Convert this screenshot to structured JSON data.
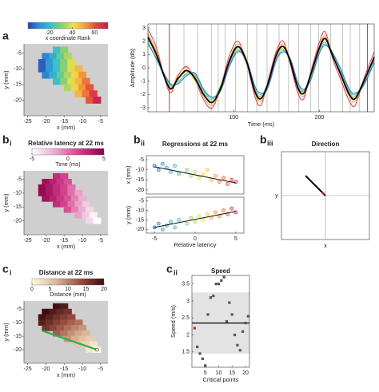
{
  "electrodes": {
    "x": [
      -17,
      -15,
      -20,
      -18,
      -16,
      -14,
      -21,
      -19,
      -17,
      -15,
      -13,
      -21,
      -19,
      -17,
      -15,
      -13,
      -11,
      -20,
      -18,
      -16,
      -14,
      -12,
      -10,
      -17,
      -15,
      -13,
      -11,
      -9,
      -14,
      -12,
      -10,
      -8,
      -11,
      -9,
      -7,
      -8,
      -6
    ],
    "y": [
      -4,
      -4,
      -6,
      -6,
      -6,
      -6,
      -8,
      -8,
      -8,
      -8,
      -8,
      -10,
      -10,
      -10,
      -10,
      -10,
      -10,
      -12,
      -12,
      -12,
      -12,
      -12,
      -12,
      -14,
      -14,
      -14,
      -14,
      -14,
      -16,
      -16,
      -16,
      -16,
      -18,
      -18,
      -18,
      -20,
      -20
    ]
  },
  "chart_data": [
    {
      "type": "map",
      "panel": "a",
      "x_label": "x (mm)",
      "y_label": "y (mm)",
      "xlim": [
        -26,
        -3
      ],
      "ylim": [
        -25,
        -2
      ],
      "xticks": [
        -25,
        -20,
        -15,
        -10,
        -5
      ],
      "yticks": [
        -20,
        -15,
        -10,
        -5
      ],
      "colorbar": {
        "label": "x coordinate Rank",
        "clim": [
          0,
          72
        ],
        "ticks": [
          20,
          40,
          60
        ],
        "colormap": [
          "#2c3fa8",
          "#2f8fd6",
          "#36c2c9",
          "#8fd16a",
          "#f3e04a",
          "#f59a3a",
          "#e0463a",
          "#c2185b"
        ]
      },
      "values": [
        21,
        30,
        9,
        17,
        26,
        34,
        4,
        13,
        21,
        30,
        39,
        4,
        13,
        21,
        30,
        39,
        47,
        9,
        17,
        26,
        34,
        43,
        52,
        21,
        30,
        39,
        47,
        56,
        34,
        43,
        52,
        60,
        47,
        56,
        64,
        60,
        69
      ]
    },
    {
      "type": "line",
      "x_label": "Time (ms)",
      "y_label": "Amplitude (db)",
      "xlim": [
        0,
        264
      ],
      "ylim": [
        -3.3,
        3.3
      ],
      "xticks": [
        100,
        200
      ],
      "yticks": [
        -3,
        -2,
        -1,
        0,
        1,
        2,
        3
      ],
      "critical_points": [
        10,
        25,
        42,
        58,
        74,
        82,
        90,
        102,
        116,
        127,
        139,
        153,
        164,
        176,
        190,
        199,
        213,
        227,
        236,
        247,
        256
      ],
      "critical_line_color": "#b5b5b5",
      "highlight": [
        25,
        256
      ],
      "highlight_color": "#d62728",
      "x": [
        0,
        10,
        25,
        35,
        45,
        55,
        65,
        75,
        85,
        95,
        105,
        115,
        125,
        132,
        140,
        150,
        158,
        166,
        175,
        182,
        190,
        200,
        207,
        215,
        225,
        235,
        242,
        252,
        264
      ],
      "series": [
        {
          "color": "#d7263d",
          "values": [
            2.9,
            1.5,
            -1.8,
            -0.6,
            0.1,
            -0.9,
            -2.4,
            -3,
            -1.4,
            0.9,
            2,
            0.4,
            -2.2,
            -2.8,
            -1,
            1.3,
            2,
            0.3,
            -1.9,
            -2.3,
            -0.3,
            1.9,
            2.7,
            0.8,
            -0.9,
            -2.5,
            -2.8,
            -0.8,
            1.2
          ]
        },
        {
          "color": "#f39c34",
          "values": [
            2.6,
            1.2,
            -1.6,
            -0.5,
            0,
            -0.7,
            -2.2,
            -2.8,
            -1.6,
            0.6,
            1.8,
            0.6,
            -1.9,
            -2.5,
            -1.3,
            1.1,
            1.8,
            0.6,
            -1.6,
            -2.1,
            -0.6,
            1.6,
            2.4,
            1.1,
            -0.6,
            -2.2,
            -2.5,
            -1.1,
            0.9
          ]
        },
        {
          "color": "#e6d94a",
          "values": [
            2.2,
            0.8,
            -1.4,
            -0.9,
            -0.3,
            -1,
            -2,
            -2.5,
            -1.7,
            0.3,
            1.5,
            0.7,
            -1.6,
            -2.2,
            -1.4,
            0.8,
            1.5,
            0.7,
            -1.3,
            -1.8,
            -0.7,
            1.3,
            2.1,
            1.2,
            -0.3,
            -1.9,
            -2.2,
            -1.2,
            0.7
          ]
        },
        {
          "color": "#6cc46a",
          "values": [
            2.5,
            0.9,
            -1.2,
            -1,
            -0.5,
            -0.6,
            -1.8,
            -2.4,
            -1.3,
            0.4,
            1.4,
            0.3,
            -1.7,
            -2.1,
            -1.1,
            0.9,
            1.4,
            0.4,
            -1.4,
            -1.7,
            -0.4,
            1.4,
            1.9,
            0.9,
            -0.4,
            -1.8,
            -2.1,
            -0.9,
            0.6
          ]
        },
        {
          "color": "#3fc1d0",
          "values": [
            2,
            0.6,
            -1.3,
            -1.1,
            -0.4,
            -0.5,
            -1.7,
            -2.3,
            -1.6,
            0.2,
            1.3,
            0.5,
            -1.5,
            -2,
            -1.3,
            0.7,
            1.3,
            0.6,
            -1.2,
            -1.7,
            -0.8,
            1.2,
            1.8,
            1.1,
            -0.2,
            -1.7,
            -2,
            -1.2,
            0.5
          ]
        },
        {
          "color": "#2c5fb0",
          "values": [
            1.8,
            0.7,
            -1.1,
            -1.2,
            -0.6,
            -0.4,
            -1.6,
            -2.2,
            -1.7,
            0.1,
            1.2,
            0.6,
            -1.4,
            -1.9,
            -1.5,
            0.6,
            1.2,
            0.7,
            -1.1,
            -1.6,
            -0.9,
            1.1,
            1.7,
            1.2,
            -0.1,
            -1.6,
            -1.9,
            -1.3,
            0.4
          ]
        },
        {
          "color": "#000000",
          "values": [
            2.3,
            1,
            -1.5,
            -0.8,
            -0.2,
            -0.8,
            -2,
            -2.6,
            -1.5,
            0.5,
            1.6,
            0.5,
            -1.8,
            -2.3,
            -1.2,
            1,
            1.6,
            0.5,
            -1.5,
            -1.9,
            -0.5,
            1.5,
            2.2,
            1,
            -0.5,
            -2,
            -2.3,
            -1,
            0.8
          ]
        }
      ]
    },
    {
      "type": "map",
      "panel": "b",
      "panel_sub": "i",
      "title": "Relative latency at 22 ms",
      "x_label": "x (mm)",
      "y_label": "y (mm)",
      "xlim": [
        -26,
        -3
      ],
      "ylim": [
        -25,
        -2
      ],
      "xticks": [
        -25,
        -20,
        -15,
        -10,
        -5
      ],
      "yticks": [
        -20,
        -15,
        -10,
        -5
      ],
      "colorbar": {
        "label": "Time (ms)",
        "clim": [
          -5,
          5
        ],
        "ticks": [
          -5,
          0,
          5
        ],
        "colormap": [
          "#ffffff",
          "#eaa6cb",
          "#d23c8a",
          "#8a0046"
        ]
      },
      "values": [
        2.5,
        1.5,
        4,
        3,
        2,
        1,
        4.5,
        3.5,
        2.5,
        1.5,
        0,
        4.5,
        3.5,
        2.5,
        1.5,
        0,
        -1.5,
        4,
        3,
        2,
        1,
        -0.5,
        -2,
        2.5,
        1.5,
        0,
        -1.5,
        -3,
        1,
        -0.5,
        -2,
        -3.5,
        -1.5,
        -3,
        -4.5,
        -3.5,
        -5
      ]
    },
    {
      "type": "regression",
      "panel": "b",
      "panel_sub": "ii",
      "title": "Regressions at 22 ms",
      "x_label": "Relative latency",
      "xlim": [
        -6,
        6
      ],
      "xticks": [
        -5,
        0,
        5
      ],
      "subplots": [
        {
          "y_label": "x (mm)",
          "ylim": [
            -22,
            -3
          ],
          "yticks": [
            -20,
            -15,
            -10,
            -5
          ],
          "x": [
            -5,
            -4.5,
            -4,
            -3.5,
            -3,
            -2.5,
            -2,
            -1,
            -0.5,
            0,
            0.5,
            1,
            1.5,
            2,
            2.5,
            3,
            3.5,
            4,
            4.5,
            5
          ],
          "values": [
            -8,
            -10,
            -7,
            -9,
            -11,
            -8,
            -12,
            -10,
            -13,
            -11,
            -14,
            -12,
            -10,
            -15,
            -13,
            -16,
            -14,
            -17,
            -15,
            -16
          ],
          "fit_x": [
            -5,
            5
          ],
          "fit_y": [
            -8.5,
            -16.5
          ]
        },
        {
          "y_label": "y (mm)",
          "ylim": [
            -22,
            -3
          ],
          "yticks": [
            -20,
            -15,
            -10,
            -5
          ],
          "x": [
            -5,
            -4.5,
            -4,
            -3.5,
            -3,
            -2.5,
            -2,
            -1,
            -0.5,
            0,
            0.5,
            1,
            1.5,
            2,
            2.5,
            3,
            3.5,
            4,
            4.5,
            5
          ],
          "values": [
            -19,
            -17,
            -20,
            -18,
            -16,
            -19,
            -15,
            -17,
            -14,
            -16,
            -13,
            -15,
            -12,
            -14,
            -11,
            -13,
            -10,
            -12,
            -9,
            -11
          ],
          "fit_x": [
            -5,
            5
          ],
          "fit_y": [
            -19,
            -10.5
          ]
        }
      ]
    },
    {
      "type": "vector",
      "panel": "b",
      "panel_sub": "iii",
      "title": "Direction",
      "x_label": "x",
      "y_label": "y",
      "xlim": [
        -1.5,
        1.5
      ],
      "ylim": [
        -1.5,
        1.5
      ],
      "vector": {
        "x": -0.68,
        "y": 0.68
      }
    },
    {
      "type": "map",
      "panel": "c",
      "panel_sub": "i",
      "title": "Distance at 22 ms",
      "x_label": "x (mm)",
      "y_label": "y (mm)",
      "xlim": [
        -26,
        -3
      ],
      "ylim": [
        -25,
        -2
      ],
      "xticks": [
        -25,
        -20,
        -15,
        -10,
        -5
      ],
      "yticks": [
        -20,
        -15,
        -10,
        -5
      ],
      "colorbar": {
        "label": "Distance (mm)",
        "clim": [
          0,
          20
        ],
        "ticks": [
          0,
          5,
          10,
          15,
          20
        ],
        "colormap": [
          "#fff8e0",
          "#dcb898",
          "#9a5040",
          "#3a0a10"
        ]
      },
      "values": [
        19.4,
        18.4,
        19.8,
        18.4,
        17.2,
        16.1,
        19.2,
        17.7,
        16.3,
        15,
        13.9,
        18,
        16.4,
        14.9,
        13.5,
        12.2,
        11.2,
        16.1,
        14.4,
        12.8,
        11.3,
        10,
        8.9,
        12.5,
        10.8,
        9.2,
        7.8,
        6.7,
        8.9,
        7.2,
        5.7,
        4.5,
        5.4,
        3.6,
        2.2,
        2,
        0
      ],
      "path": {
        "x": [
          -21,
          -6
        ],
        "y": [
          -13,
          -20
        ],
        "color": "#2db34a"
      }
    },
    {
      "type": "scatter",
      "panel": "c",
      "panel_sub": "ii",
      "title": "Speed",
      "x_label": "Critical points",
      "y_label": "Speed (m/s)",
      "xlim": [
        0,
        21.5
      ],
      "ylim": [
        1.05,
        3.75
      ],
      "xticks": [
        5,
        10,
        15,
        20
      ],
      "yticks": [
        1.5,
        2,
        2.5,
        3,
        3.5
      ],
      "x": [
        1,
        2,
        3,
        4,
        5,
        6,
        7,
        8,
        9,
        10,
        11,
        12,
        13,
        14,
        15,
        16,
        17,
        18,
        19,
        20,
        21
      ],
      "values": [
        2.2,
        1.65,
        1.45,
        1.3,
        1.1,
        2.6,
        3.1,
        3.15,
        3.5,
        3.5,
        3.6,
        3.7,
        2.4,
        2.95,
        2.6,
        2,
        1.7,
        1.55,
        2.1,
        2.35,
        2.55
      ],
      "color": "#555555",
      "first_color": "#d62728",
      "mean": 2.35,
      "band": [
        1.45,
        3.25
      ],
      "band_color": "#e3e3e3"
    }
  ]
}
